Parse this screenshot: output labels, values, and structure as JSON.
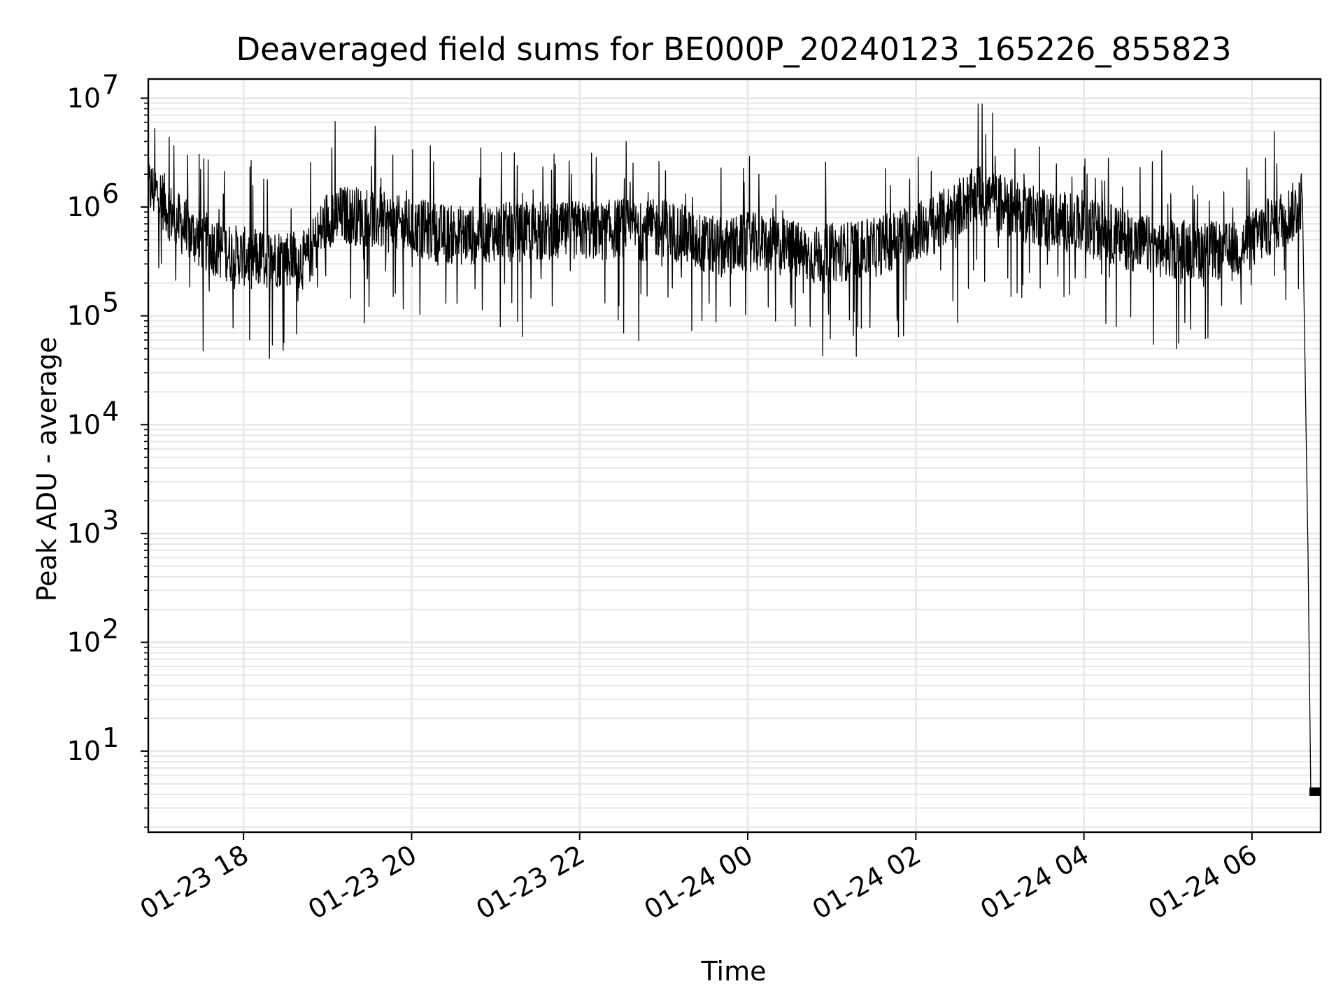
{
  "chart_data": {
    "type": "line",
    "title": "Deaveraged field sums for BE000P_20240123_165226_855823",
    "xlabel": "Time",
    "ylabel": "Peak ADU - average",
    "y_scale": "log",
    "xlim": [
      "2024-01-23 16:52",
      "2024-01-24 06:49"
    ],
    "ylim": [
      1.8,
      15000000
    ],
    "grid": true,
    "grid_color": "#e6e6e6",
    "line_color": "#000000",
    "x_ticks": [
      {
        "value": "2024-01-23 18:00",
        "label": "01-23 18"
      },
      {
        "value": "2024-01-23 20:00",
        "label": "01-23 20"
      },
      {
        "value": "2024-01-23 22:00",
        "label": "01-23 22"
      },
      {
        "value": "2024-01-24 00:00",
        "label": "01-24 00"
      },
      {
        "value": "2024-01-24 02:00",
        "label": "01-24 02"
      },
      {
        "value": "2024-01-24 04:00",
        "label": "01-24 04"
      },
      {
        "value": "2024-01-24 06:00",
        "label": "01-24 06"
      }
    ],
    "y_ticks": [
      {
        "value": 10,
        "base": "10",
        "exp": "1"
      },
      {
        "value": 100,
        "base": "10",
        "exp": "2"
      },
      {
        "value": 1000,
        "base": "10",
        "exp": "3"
      },
      {
        "value": 10000,
        "base": "10",
        "exp": "4"
      },
      {
        "value": 100000,
        "base": "10",
        "exp": "5"
      },
      {
        "value": 1000000,
        "base": "10",
        "exp": "6"
      },
      {
        "value": 10000000,
        "base": "10",
        "exp": "7"
      }
    ],
    "series": [
      {
        "x": [
          "2024-01-23 16:52",
          "2024-01-23 17:00",
          "2024-01-23 17:10",
          "2024-01-23 17:20",
          "2024-01-23 17:30",
          "2024-01-23 17:45",
          "2024-01-23 18:00",
          "2024-01-23 18:15",
          "2024-01-23 18:30",
          "2024-01-23 18:45",
          "2024-01-23 19:00",
          "2024-01-23 19:15",
          "2024-01-23 19:30",
          "2024-01-23 19:45",
          "2024-01-23 20:00",
          "2024-01-23 20:15",
          "2024-01-23 20:30",
          "2024-01-23 20:45",
          "2024-01-23 21:00",
          "2024-01-23 21:15",
          "2024-01-23 21:30",
          "2024-01-23 21:45",
          "2024-01-23 22:00",
          "2024-01-23 22:15",
          "2024-01-23 22:30",
          "2024-01-23 22:45",
          "2024-01-23 23:00",
          "2024-01-23 23:15",
          "2024-01-23 23:30",
          "2024-01-23 23:45",
          "2024-01-24 00:00",
          "2024-01-24 00:15",
          "2024-01-24 00:30",
          "2024-01-24 00:45",
          "2024-01-24 01:00",
          "2024-01-24 01:15",
          "2024-01-24 01:30",
          "2024-01-24 01:45",
          "2024-01-24 02:00",
          "2024-01-24 02:15",
          "2024-01-24 02:30",
          "2024-01-24 02:45",
          "2024-01-24 03:00",
          "2024-01-24 03:15",
          "2024-01-24 03:30",
          "2024-01-24 03:45",
          "2024-01-24 04:00",
          "2024-01-24 04:15",
          "2024-01-24 04:30",
          "2024-01-24 04:45",
          "2024-01-24 05:00",
          "2024-01-24 05:15",
          "2024-01-24 05:30",
          "2024-01-24 05:45",
          "2024-01-24 06:00",
          "2024-01-24 06:15",
          "2024-01-24 06:30",
          "2024-01-24 06:36",
          "2024-01-24 06:40",
          "2024-01-24 06:42",
          "2024-01-24 06:49"
        ],
        "values": [
          1500000,
          1300000,
          800000,
          600000,
          500000,
          400000,
          350000,
          330000,
          350000,
          320000,
          800000,
          850000,
          800000,
          700000,
          650000,
          600000,
          550000,
          550000,
          600000,
          580000,
          600000,
          580000,
          620000,
          600000,
          650000,
          600000,
          650000,
          550000,
          450000,
          420000,
          480000,
          450000,
          420000,
          350000,
          380000,
          400000,
          420000,
          500000,
          600000,
          700000,
          1000000,
          1300000,
          1100000,
          900000,
          800000,
          750000,
          650000,
          600000,
          500000,
          450000,
          400000,
          420000,
          400000,
          380000,
          500000,
          700000,
          900000,
          1200000,
          650,
          4,
          4
        ]
      }
    ]
  }
}
